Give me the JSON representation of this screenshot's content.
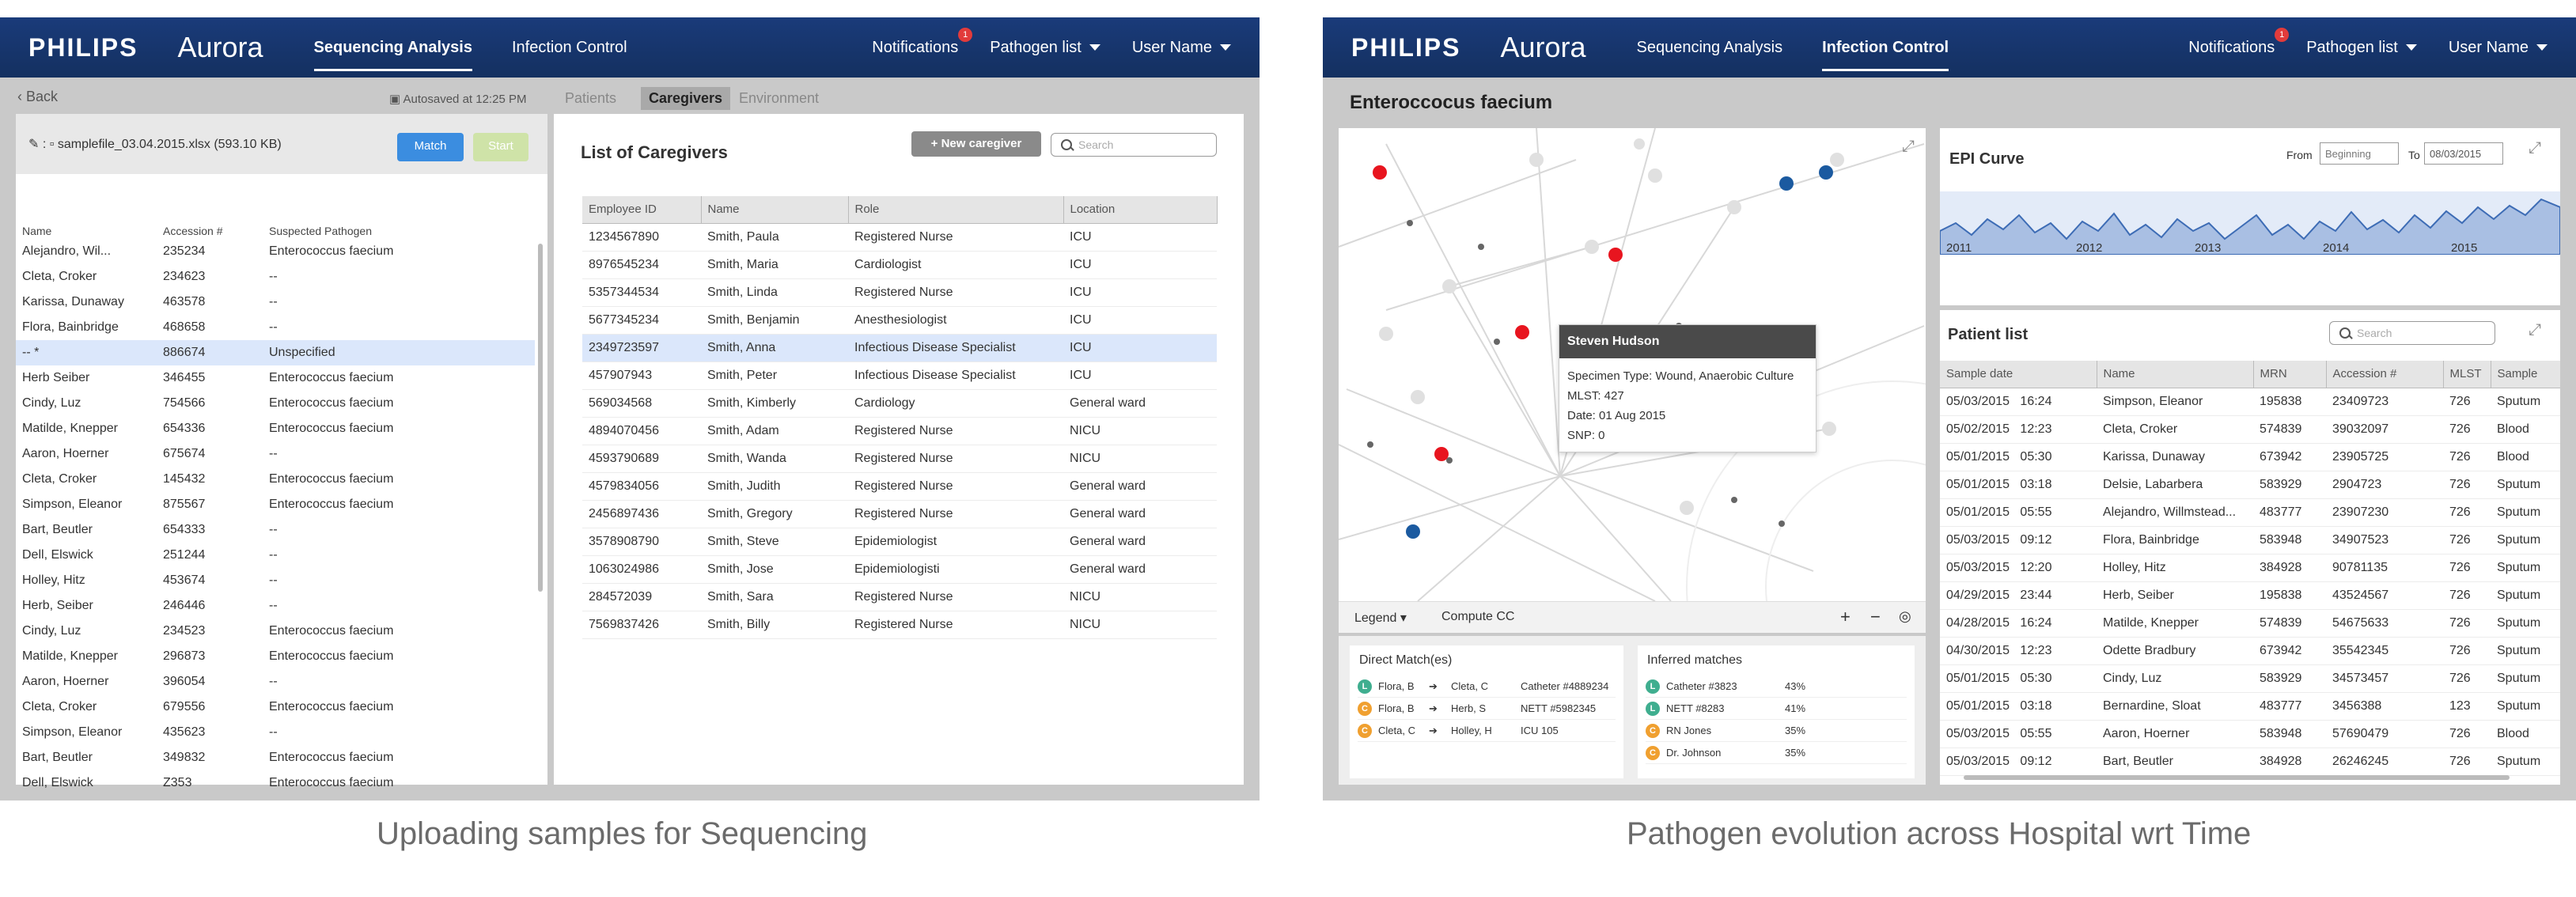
{
  "left": {
    "brand": "PHILIPS",
    "app": "Aurora",
    "nav": [
      "Sequencing Analysis",
      "Infection Control"
    ],
    "notifications": "Notifications",
    "notif_count": "1",
    "pathogen_list": "Pathogen list",
    "user": "User Name",
    "back": "Back",
    "autosave": "Autosaved at 12:25 PM",
    "subtabs": [
      "Patients",
      "Caregivers",
      "Environment"
    ],
    "file": "samplefile_03.04.2015.xlsx (593.10 KB)",
    "match": "Match",
    "start": "Start",
    "sample_headers": [
      "Name",
      "Accession #",
      "Suspected Pathogen"
    ],
    "samples": [
      [
        "Alejandro, Wil...",
        "235234",
        "Enterococcus faecium"
      ],
      [
        "Cleta, Croker",
        "234623",
        "--"
      ],
      [
        "Karissa, Dunaway",
        "463578",
        "--"
      ],
      [
        "Flora, Bainbridge",
        "468658",
        "--"
      ],
      [
        "-- *",
        "886674",
        "Unspecified"
      ],
      [
        "Herb Seiber",
        "346455",
        "Enterococcus faecium"
      ],
      [
        "Cindy, Luz",
        "754566",
        "Enterococcus faecium"
      ],
      [
        "Matilde, Knepper",
        "654336",
        "Enterococcus faecium"
      ],
      [
        "Aaron, Hoerner",
        "675674",
        "--"
      ],
      [
        "Cleta, Croker",
        "145432",
        "Enterococcus faecium"
      ],
      [
        "Simpson, Eleanor",
        "875567",
        "Enterococcus faecium"
      ],
      [
        "Bart, Beutler",
        "654333",
        "--"
      ],
      [
        "Dell, Elswick",
        "251244",
        "--"
      ],
      [
        "Holley, Hitz",
        "453674",
        "--"
      ],
      [
        "Herb, Seiber",
        "246446",
        "--"
      ],
      [
        "Cindy, Luz",
        "234523",
        "Enterococcus faecium"
      ],
      [
        "Matilde, Knepper",
        "296873",
        "Enterococcus faecium"
      ],
      [
        "Aaron, Hoerner",
        "396054",
        "--"
      ],
      [
        "Cleta, Croker",
        "679556",
        "Enterococcus faecium"
      ],
      [
        "Simpson, Eleanor",
        "435623",
        "--"
      ],
      [
        "Bart, Beutler",
        "349832",
        "Enterococcus faecium"
      ],
      [
        "Dell, Elswick",
        "Z353",
        "Enterococcus faecium"
      ]
    ],
    "cg_title": "List of Caregivers",
    "new_cg": "+ New caregiver",
    "search": "Search",
    "cg_headers": [
      "Employee ID",
      "Name",
      "Role",
      "Location"
    ],
    "caregivers": [
      [
        "1234567890",
        "Smith, Paula",
        "Registered Nurse",
        "ICU"
      ],
      [
        "8976545234",
        "Smith, Maria",
        "Cardiologist",
        "ICU"
      ],
      [
        "5357344534",
        "Smith, Linda",
        "Registered Nurse",
        "ICU"
      ],
      [
        "5677345234",
        "Smith, Benjamin",
        "Anesthesiologist",
        "ICU"
      ],
      [
        "2349723597",
        "Smith, Anna",
        "Infectious Disease Specialist",
        "ICU"
      ],
      [
        "457907943",
        "Smith, Peter",
        "Infectious Disease Specialist",
        "ICU"
      ],
      [
        "569034568",
        "Smith, Kimberly",
        "Cardiology",
        "General ward"
      ],
      [
        "4894070456",
        "Smith, Adam",
        "Registered Nurse",
        "NICU"
      ],
      [
        "4593790689",
        "Smith, Wanda",
        "Registered Nurse",
        "NICU"
      ],
      [
        "4579834056",
        "Smith, Judith",
        "Registered Nurse",
        "General ward"
      ],
      [
        "2456897436",
        "Smith, Gregory",
        "Registered Nurse",
        "General ward"
      ],
      [
        "3578908790",
        "Smith, Steve",
        "Epidemiologist",
        "General ward"
      ],
      [
        "1063024986",
        "Smith, Jose",
        "Epidemiologisti",
        "General ward"
      ],
      [
        "284572039",
        "Smith, Sara",
        "Registered Nurse",
        "NICU"
      ],
      [
        "7569837426",
        "Smith, Billy",
        "Registered Nurse",
        "NICU"
      ]
    ],
    "caption": "Uploading samples for Sequencing"
  },
  "right": {
    "brand": "PHILIPS",
    "app": "Aurora",
    "nav": [
      "Sequencing Analysis",
      "Infection Control"
    ],
    "notifications": "Notifications",
    "notif_count": "1",
    "pathogen_list": "Pathogen list",
    "user": "User Name",
    "organism": "Enteroccocus faecium",
    "tooltip": {
      "name": "Steven Hudson",
      "lines": [
        "Specimen Type: Wound, Anaerobic Culture",
        "MLST: 427",
        "Date: 01 Aug 2015",
        "SNP: 0"
      ]
    },
    "legend": "Legend",
    "compute": "Compute CC",
    "direct_title": "Direct Match(es)",
    "direct": [
      {
        "tag": "L",
        "color": "#3fae8f",
        "a": "Flora, B",
        "b": "Cleta, C",
        "c": "Catheter #4889234"
      },
      {
        "tag": "C",
        "color": "#f0a030",
        "a": "Flora, B",
        "b": "Herb, S",
        "c": "NETT #5982345"
      },
      {
        "tag": "C",
        "color": "#f0a030",
        "a": "Cleta, C",
        "b": "Holley, H",
        "c": "ICU 105"
      }
    ],
    "inferred_title": "Inferred matches",
    "inferred": [
      {
        "tag": "L",
        "color": "#3fae8f",
        "a": "Catheter #3823",
        "b": "43%"
      },
      {
        "tag": "L",
        "color": "#3fae8f",
        "a": "NETT #8283",
        "b": "41%"
      },
      {
        "tag": "C",
        "color": "#f0a030",
        "a": "RN Jones",
        "b": "35%"
      },
      {
        "tag": "C",
        "color": "#f0a030",
        "a": "Dr. Johnson",
        "b": "35%"
      }
    ],
    "epi_title": "EPI Curve",
    "from": "From",
    "from_val": "Beginning",
    "to": "To",
    "to_val": "08/03/2015",
    "years": [
      "2011",
      "2012",
      "2013",
      "2014",
      "2015"
    ],
    "patient_title": "Patient list",
    "search": "Search",
    "pt_headers": [
      "Sample date",
      "Name",
      "MRN",
      "Accession #",
      "MLST",
      "Sample"
    ],
    "patients": [
      [
        "05/03/2015",
        "16:24",
        "Simpson, Eleanor",
        "195838",
        "23409723",
        "726",
        "Sputum"
      ],
      [
        "05/02/2015",
        "12:23",
        "Cleta, Croker",
        "574839",
        "39032097",
        "726",
        "Blood"
      ],
      [
        "05/01/2015",
        "05:30",
        "Karissa, Dunaway",
        "673942",
        "23905725",
        "726",
        "Blood"
      ],
      [
        "05/01/2015",
        "03:18",
        "Delsie, Labarbera",
        "583929",
        "2904723",
        "726",
        "Sputum"
      ],
      [
        "05/01/2015",
        "05:55",
        "Alejandro, Willmstead...",
        "483777",
        "23907230",
        "726",
        "Sputum"
      ],
      [
        "05/03/2015",
        "09:12",
        "Flora, Bainbridge",
        "583948",
        "34907523",
        "726",
        "Sputum"
      ],
      [
        "05/03/2015",
        "12:20",
        "Holley, Hitz",
        "384928",
        "90781135",
        "726",
        "Sputum"
      ],
      [
        "04/29/2015",
        "23:44",
        "Herb, Seiber",
        "195838",
        "43524567",
        "726",
        "Sputum"
      ],
      [
        "04/28/2015",
        "16:24",
        "Matilde, Knepper",
        "574839",
        "54675633",
        "726",
        "Sputum"
      ],
      [
        "04/30/2015",
        "12:23",
        "Odette Bradbury",
        "673942",
        "35542345",
        "726",
        "Sputum"
      ],
      [
        "05/01/2015",
        "05:30",
        "Cindy, Luz",
        "583929",
        "34573457",
        "726",
        "Sputum"
      ],
      [
        "05/01/2015",
        "03:18",
        "Bernardine, Sloat",
        "483777",
        "3456388",
        "123",
        "Sputum"
      ],
      [
        "05/03/2015",
        "05:55",
        "Aaron, Hoerner",
        "583948",
        "57690479",
        "726",
        "Blood"
      ],
      [
        "05/03/2015",
        "09:12",
        "Bart, Beutler",
        "384928",
        "26246245",
        "726",
        "Sputum"
      ]
    ],
    "caption": "Pathogen evolution across Hospital wrt Time"
  }
}
